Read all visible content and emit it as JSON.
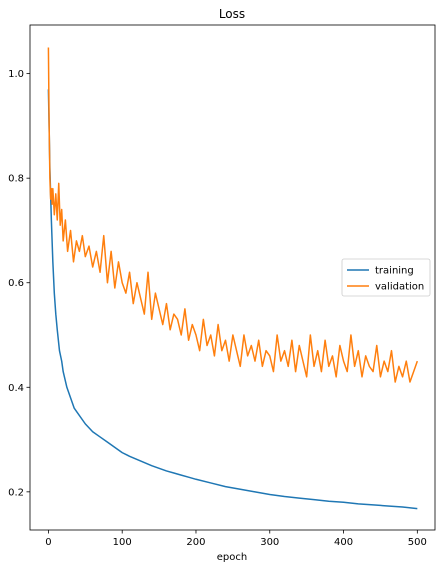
{
  "chart_data": {
    "type": "line",
    "title": "Loss",
    "xlabel": "epoch",
    "ylabel": "",
    "xlim": [
      -24.95,
      523.95
    ],
    "ylim": [
      0.127,
      1.093
    ],
    "x_ticks": [
      0,
      100,
      200,
      300,
      400,
      500
    ],
    "x_tick_labels": [
      "0",
      "100",
      "200",
      "300",
      "400",
      "500"
    ],
    "y_ticks": [
      0.2,
      0.4,
      0.6,
      0.8,
      1.0
    ],
    "y_tick_labels": [
      "0.2",
      "0.4",
      "0.6",
      "0.8",
      "1.0"
    ],
    "grid": false,
    "legend_position": "center-right",
    "series": [
      {
        "name": "training",
        "color": "#1f77b4",
        "x": [
          0,
          2,
          4,
          6,
          8,
          10,
          12,
          15,
          18,
          20,
          25,
          30,
          35,
          40,
          50,
          60,
          70,
          80,
          90,
          100,
          110,
          120,
          130,
          140,
          150,
          160,
          170,
          180,
          190,
          200,
          220,
          240,
          260,
          280,
          300,
          320,
          340,
          360,
          380,
          400,
          420,
          440,
          460,
          480,
          500
        ],
        "y": [
          0.97,
          0.82,
          0.72,
          0.64,
          0.58,
          0.54,
          0.51,
          0.47,
          0.45,
          0.43,
          0.4,
          0.38,
          0.36,
          0.35,
          0.33,
          0.315,
          0.305,
          0.295,
          0.285,
          0.275,
          0.268,
          0.262,
          0.256,
          0.25,
          0.245,
          0.24,
          0.236,
          0.232,
          0.228,
          0.224,
          0.217,
          0.21,
          0.205,
          0.2,
          0.195,
          0.191,
          0.188,
          0.185,
          0.182,
          0.18,
          0.177,
          0.175,
          0.173,
          0.171,
          0.168
        ]
      },
      {
        "name": "validation",
        "color": "#ff7f0e",
        "x": [
          0,
          1,
          2,
          3,
          4,
          5,
          6,
          8,
          10,
          12,
          14,
          16,
          18,
          20,
          23,
          26,
          30,
          34,
          38,
          42,
          46,
          50,
          55,
          60,
          65,
          70,
          75,
          80,
          85,
          90,
          95,
          100,
          105,
          110,
          115,
          120,
          125,
          130,
          135,
          140,
          145,
          150,
          155,
          160,
          165,
          170,
          175,
          180,
          185,
          190,
          195,
          200,
          205,
          210,
          215,
          220,
          225,
          230,
          235,
          240,
          245,
          250,
          255,
          260,
          265,
          270,
          275,
          280,
          285,
          290,
          295,
          300,
          305,
          310,
          315,
          320,
          325,
          330,
          335,
          340,
          345,
          350,
          355,
          360,
          365,
          370,
          375,
          380,
          385,
          390,
          395,
          400,
          405,
          410,
          415,
          420,
          425,
          430,
          435,
          440,
          445,
          450,
          455,
          460,
          465,
          470,
          475,
          480,
          485,
          490,
          495,
          500
        ],
        "y": [
          1.05,
          0.9,
          0.8,
          0.76,
          0.78,
          0.75,
          0.78,
          0.73,
          0.77,
          0.72,
          0.79,
          0.71,
          0.74,
          0.68,
          0.72,
          0.66,
          0.7,
          0.64,
          0.68,
          0.66,
          0.69,
          0.65,
          0.67,
          0.63,
          0.66,
          0.62,
          0.69,
          0.6,
          0.66,
          0.59,
          0.64,
          0.6,
          0.58,
          0.62,
          0.56,
          0.6,
          0.57,
          0.54,
          0.62,
          0.53,
          0.58,
          0.55,
          0.52,
          0.56,
          0.51,
          0.54,
          0.53,
          0.5,
          0.55,
          0.49,
          0.52,
          0.5,
          0.47,
          0.53,
          0.48,
          0.5,
          0.46,
          0.52,
          0.47,
          0.49,
          0.45,
          0.5,
          0.47,
          0.44,
          0.5,
          0.46,
          0.48,
          0.45,
          0.49,
          0.44,
          0.47,
          0.46,
          0.43,
          0.5,
          0.45,
          0.47,
          0.44,
          0.49,
          0.43,
          0.48,
          0.45,
          0.42,
          0.5,
          0.44,
          0.47,
          0.43,
          0.49,
          0.44,
          0.46,
          0.42,
          0.48,
          0.45,
          0.43,
          0.5,
          0.44,
          0.47,
          0.42,
          0.46,
          0.44,
          0.43,
          0.48,
          0.42,
          0.45,
          0.43,
          0.47,
          0.41,
          0.44,
          0.42,
          0.45,
          0.41,
          0.43,
          0.45
        ]
      }
    ]
  }
}
